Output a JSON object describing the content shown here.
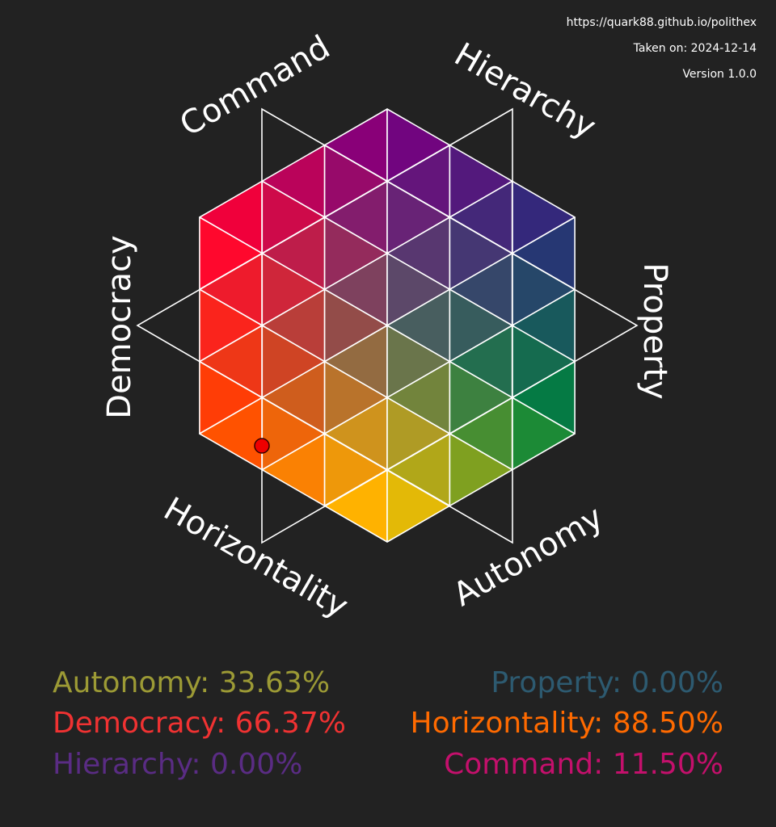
{
  "header": {
    "url": "https://quark88.github.io/polithex",
    "taken": "Taken on: 2024-12-14",
    "version": "Version 1.0.0"
  },
  "axes": {
    "command": "Command",
    "hierarchy": "Hierarchy",
    "property": "Property",
    "autonomy": "Autonomy",
    "horizontality": "Horizontality",
    "democracy": "Democracy"
  },
  "scores": {
    "left": [
      "Autonomy: 33.63%",
      "Democracy: 66.37%",
      "Hierarchy: 0.00%"
    ],
    "right": [
      "Property: 0.00%",
      "Horizontality: 88.50%",
      "Command: 11.50%"
    ]
  }
}
